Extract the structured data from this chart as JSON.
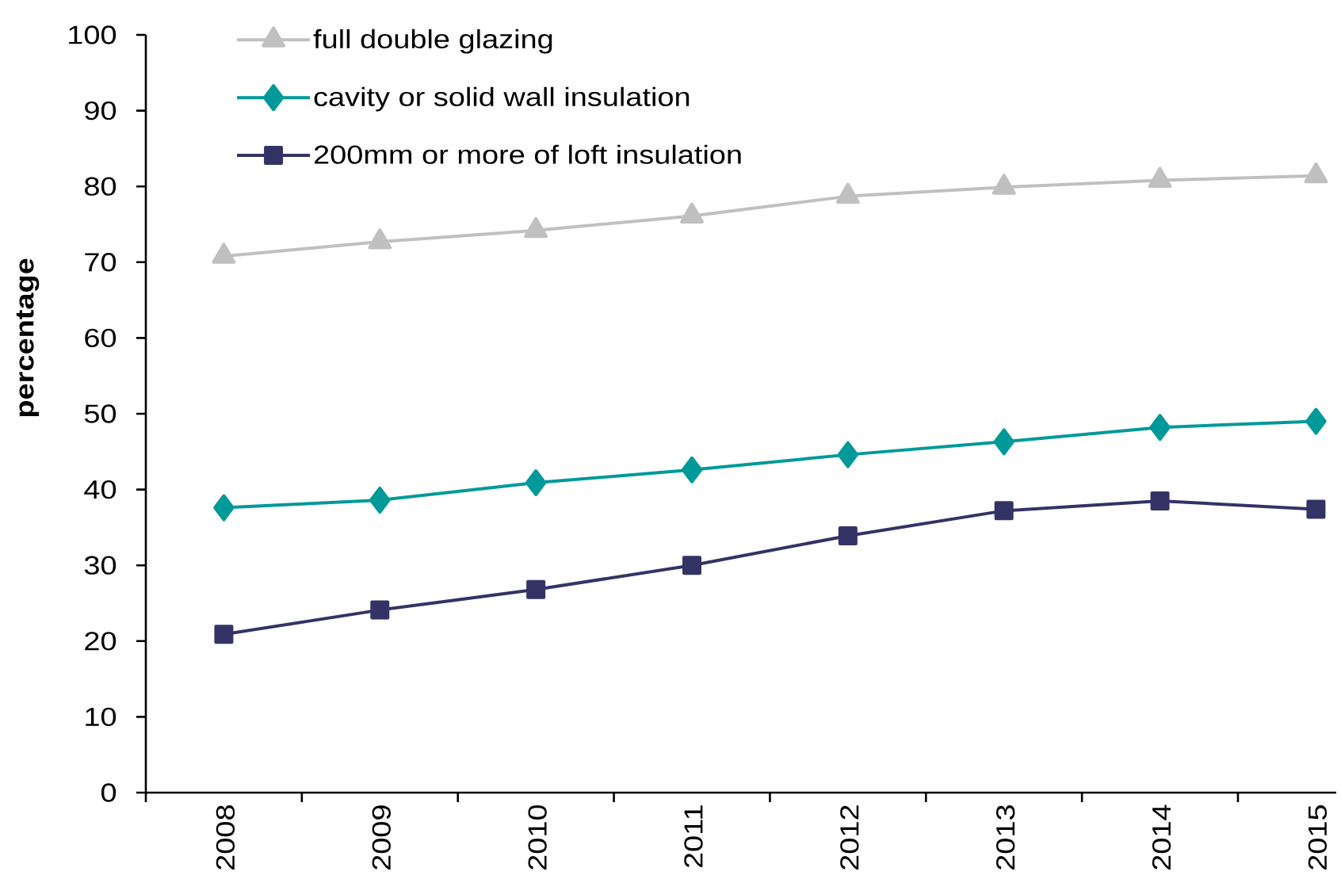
{
  "chart_data": {
    "type": "line",
    "ylabel": "percentage",
    "legend": "top left",
    "categories": [
      "2008",
      "2009",
      "2010",
      "2011",
      "2012",
      "2013",
      "2014",
      "2015"
    ],
    "ylim": [
      0,
      100
    ],
    "yticks": [
      0,
      10,
      20,
      30,
      40,
      50,
      60,
      70,
      80,
      90,
      100
    ],
    "series": [
      {
        "name": "full double glazing",
        "color": "#c0c0c0",
        "marker": "triangle",
        "values": [
          70.8,
          72.7,
          74.2,
          76.1,
          78.7,
          79.9,
          80.8,
          81.4
        ]
      },
      {
        "name": "cavity or solid wall insulation",
        "color": "#009999",
        "marker": "diamond",
        "values": [
          37.6,
          38.6,
          40.9,
          42.6,
          44.6,
          46.3,
          48.2,
          49.0
        ]
      },
      {
        "name": "200mm or more of loft insulation",
        "color": "#333366",
        "marker": "square",
        "values": [
          20.9,
          24.1,
          26.8,
          30.0,
          33.9,
          37.2,
          38.5,
          37.4
        ]
      }
    ]
  }
}
